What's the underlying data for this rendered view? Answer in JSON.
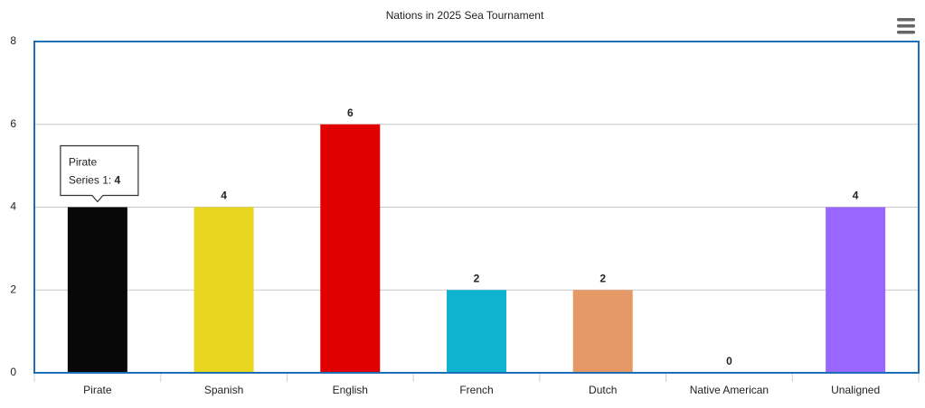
{
  "chart_data": {
    "type": "bar",
    "title": "Nations in 2025 Sea Tournament",
    "categories": [
      "Pirate",
      "Spanish",
      "English",
      "French",
      "Dutch",
      "Native American",
      "Unaligned"
    ],
    "series": [
      {
        "name": "Series 1",
        "values": [
          4,
          4,
          6,
          2,
          2,
          0,
          4
        ],
        "colors": [
          "#080808",
          "#e8d61e",
          "#e00000",
          "#10b4d0",
          "#e59966",
          "#2f7ed8",
          "#9966ff"
        ]
      }
    ],
    "ylim": [
      0,
      8
    ],
    "yticks": [
      0,
      2,
      4,
      6,
      8
    ],
    "grid": true,
    "tooltip": {
      "category": 0,
      "series": 0
    }
  }
}
